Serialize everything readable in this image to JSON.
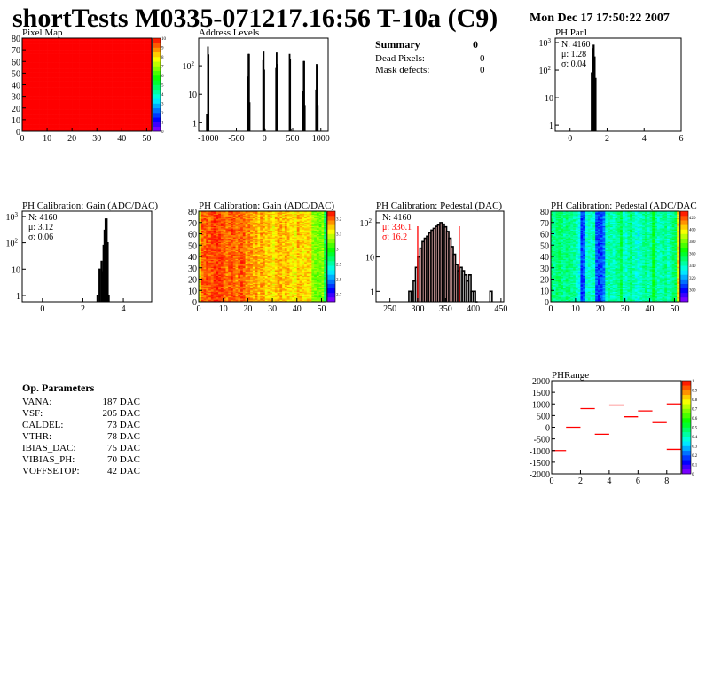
{
  "canvas": {
    "title": "shortTests M0335-071217.16:56 T-10a (C9)",
    "date": "Mon Dec 17 17:50:22 2007"
  },
  "summary": {
    "heading": "Summary",
    "total": "0",
    "rows": [
      {
        "label": "Dead Pixels:",
        "value": "0"
      },
      {
        "label": "Mask defects:",
        "value": "0"
      }
    ]
  },
  "op_parameters": {
    "heading": "Op. Parameters",
    "rows": [
      {
        "label": "VANA:",
        "value": "187 DAC"
      },
      {
        "label": "VSF:",
        "value": "205 DAC"
      },
      {
        "label": "CALDEL:",
        "value": "73 DAC"
      },
      {
        "label": "VTHR:",
        "value": "78 DAC"
      },
      {
        "label": "IBIAS_DAC:",
        "value": "75 DAC"
      },
      {
        "label": "VIBIAS_PH:",
        "value": "70 DAC"
      },
      {
        "label": "VOFFSETOP:",
        "value": "42 DAC"
      }
    ]
  },
  "colors": {
    "line": "#000000",
    "highlight": "#ff0000"
  },
  "chart_data": [
    {
      "id": "pixel_map",
      "type": "heatmap",
      "title": "Pixel Map",
      "xlim": [
        0,
        52
      ],
      "ylim": [
        0,
        80
      ],
      "zlim": [
        0,
        10
      ],
      "xticks": [
        0,
        10,
        20,
        30,
        40,
        50
      ],
      "yticks": [
        0,
        10,
        20,
        30,
        40,
        50,
        60,
        70,
        80
      ],
      "zticks": [
        0,
        1,
        2,
        3,
        4,
        5,
        6,
        7,
        8,
        9,
        10
      ],
      "uniform_value": 10
    },
    {
      "id": "address_levels",
      "type": "bar",
      "title": "Address Levels",
      "xlim": [
        -1170,
        1130
      ],
      "ylim": [
        0.5,
        930
      ],
      "log_y": true,
      "xticks": [
        -1000,
        -500,
        0,
        500,
        1000
      ],
      "yticks": [
        1,
        10,
        100
      ],
      "bins": [
        [
          -1030,
          2
        ],
        [
          -1020,
          0.5
        ],
        [
          -1010,
          450
        ],
        [
          -1000,
          240
        ],
        [
          -310,
          8
        ],
        [
          -300,
          40
        ],
        [
          -290,
          250
        ],
        [
          -280,
          250
        ],
        [
          -270,
          5
        ],
        [
          -30,
          150
        ],
        [
          -20,
          300
        ],
        [
          -10,
          70
        ],
        [
          0,
          0.6
        ],
        [
          200,
          80
        ],
        [
          210,
          280
        ],
        [
          220,
          110
        ],
        [
          440,
          250
        ],
        [
          450,
          170
        ],
        [
          460,
          0.6
        ],
        [
          680,
          13
        ],
        [
          690,
          140
        ],
        [
          700,
          140
        ],
        [
          710,
          4
        ],
        [
          910,
          14
        ],
        [
          920,
          110
        ],
        [
          930,
          100
        ],
        [
          940,
          4
        ]
      ],
      "bin_width": 10
    },
    {
      "id": "ph_par1",
      "type": "bar",
      "title": "PH Par1",
      "xlim": [
        -0.8,
        6
      ],
      "ylim": [
        0.6,
        1450
      ],
      "log_y": true,
      "xticks": [
        0,
        2,
        4,
        6
      ],
      "yticks": [
        1,
        10,
        100,
        1000
      ],
      "stats": {
        "N": "N: 4160",
        "mean": "μ: 1.28",
        "sigma": "σ: 0.04"
      },
      "bins": [
        [
          1.15,
          80
        ],
        [
          1.2,
          600
        ],
        [
          1.25,
          800
        ],
        [
          1.3,
          300
        ],
        [
          1.35,
          50
        ]
      ],
      "bin_width": 0.05
    },
    {
      "id": "gain_hist",
      "type": "bar",
      "title": "PH Calibration: Gain (ADC/DAC)",
      "xlim": [
        -1,
        5.4
      ],
      "ylim": [
        0.58,
        1580
      ],
      "log_y": true,
      "xticks": [
        0,
        2,
        4
      ],
      "yticks": [
        1,
        10,
        100,
        1000
      ],
      "stats": {
        "N": "N: 4160",
        "mean": "μ: 3.12",
        "sigma": "σ: 0.06"
      },
      "bins": [
        [
          2.7,
          1
        ],
        [
          2.8,
          10
        ],
        [
          2.9,
          20
        ],
        [
          2.95,
          8
        ],
        [
          3.0,
          80
        ],
        [
          3.05,
          300
        ],
        [
          3.1,
          800
        ],
        [
          3.15,
          800
        ],
        [
          3.2,
          100
        ],
        [
          3.25,
          1
        ]
      ],
      "bin_width": 0.05
    },
    {
      "id": "gain_map",
      "type": "heatmap",
      "title": "PH Calibration: Gain (ADC/DAC)",
      "xlim": [
        0,
        52
      ],
      "ylim": [
        0,
        80
      ],
      "zlim": [
        2.65,
        3.25
      ],
      "xticks": [
        0,
        10,
        20,
        30,
        40,
        50
      ],
      "yticks": [
        0,
        10,
        20,
        30,
        40,
        50,
        60,
        70,
        80
      ],
      "zticks": [
        2.7,
        2.8,
        2.9,
        3,
        3.1,
        3.2
      ],
      "column_means": [
        3.1,
        3.2,
        3.2,
        3.21,
        3.2,
        3.21,
        3.22,
        3.22,
        3.22,
        3.21,
        3.2,
        3.19,
        3.2,
        3.21,
        3.2,
        3.18,
        3.2,
        3.21,
        3.2,
        3.17,
        3.18,
        3.17,
        3.16,
        3.17,
        3.15,
        3.17,
        3.16,
        3.14,
        3.15,
        3.13,
        3.12,
        3.15,
        3.16,
        3.16,
        3.14,
        3.16,
        3.15,
        3.13,
        3.13,
        3.12,
        3.16,
        3.14,
        3.13,
        3.13,
        3.14,
        3.13,
        3.06,
        3.05,
        3.05,
        3.04,
        3.06,
        2.95
      ]
    },
    {
      "id": "pedestal_hist",
      "type": "bar",
      "title": "PH Calibration: Pedestal (DAC)",
      "xlim": [
        225,
        455
      ],
      "ylim": [
        0.5,
        215
      ],
      "log_y": true,
      "xticks": [
        250,
        300,
        350,
        400,
        450
      ],
      "yticks": [
        1,
        10,
        100
      ],
      "stats": {
        "N": "N: 4160",
        "mean": "μ: 336.1",
        "sigma": "σ: 16.2"
      },
      "cut_lines": [
        300,
        375
      ],
      "bins": [
        [
          284,
          1
        ],
        [
          288,
          1
        ],
        [
          292,
          2
        ],
        [
          296,
          5
        ],
        [
          300,
          10
        ],
        [
          304,
          18
        ],
        [
          308,
          28
        ],
        [
          312,
          35
        ],
        [
          316,
          40
        ],
        [
          320,
          50
        ],
        [
          324,
          60
        ],
        [
          328,
          68
        ],
        [
          332,
          78
        ],
        [
          336,
          85
        ],
        [
          340,
          100
        ],
        [
          344,
          90
        ],
        [
          348,
          75
        ],
        [
          352,
          55
        ],
        [
          356,
          35
        ],
        [
          360,
          20
        ],
        [
          364,
          12
        ],
        [
          368,
          6
        ],
        [
          372,
          4
        ],
        [
          376,
          5
        ],
        [
          380,
          4
        ],
        [
          384,
          3
        ],
        [
          388,
          2
        ],
        [
          392,
          3
        ],
        [
          396,
          1
        ],
        [
          400,
          1
        ],
        [
          404,
          0.5
        ],
        [
          430,
          1
        ]
      ],
      "bin_width": 4
    },
    {
      "id": "pedestal_map",
      "type": "heatmap",
      "title": "PH Calibration: Pedestal (ADC/DAC",
      "xlim": [
        0,
        52
      ],
      "ylim": [
        0,
        80
      ],
      "zlim": [
        280,
        430
      ],
      "xticks": [
        0,
        10,
        20,
        30,
        40,
        50
      ],
      "yticks": [
        0,
        10,
        20,
        30,
        40,
        50,
        60,
        70,
        80
      ],
      "zticks": [
        300,
        320,
        340,
        360,
        380,
        400,
        420
      ],
      "column_means": [
        350,
        345,
        350,
        352,
        348,
        345,
        350,
        348,
        346,
        345,
        340,
        335,
        305,
        310,
        335,
        340,
        338,
        342,
        310,
        305,
        308,
        315,
        340,
        345,
        342,
        340,
        345,
        348,
        355,
        340,
        338,
        345,
        350,
        342,
        338,
        335,
        340,
        345,
        348,
        342,
        345,
        360,
        345,
        340,
        342,
        345,
        348,
        340,
        345,
        350,
        352,
        400
      ]
    },
    {
      "id": "ph_range",
      "type": "scatter",
      "title": "PHRange",
      "xlim": [
        0,
        9
      ],
      "ylim": [
        -2000,
        2000
      ],
      "zlim": [
        0,
        1
      ],
      "xticks": [
        0,
        2,
        4,
        6,
        8
      ],
      "yticks": [
        -2000,
        -1500,
        -1000,
        -500,
        0,
        500,
        1000,
        1500,
        2000
      ],
      "zticks": [
        0,
        0.1,
        0.2,
        0.3,
        0.4,
        0.5,
        0.6,
        0.7,
        0.8,
        0.9,
        1
      ],
      "segments": [
        [
          0,
          1,
          -1000
        ],
        [
          1,
          2,
          0
        ],
        [
          2,
          3,
          800
        ],
        [
          3,
          4,
          -300
        ],
        [
          4,
          5,
          950
        ],
        [
          5,
          6,
          450
        ],
        [
          6,
          7,
          700
        ],
        [
          7,
          8,
          200
        ],
        [
          8,
          9,
          1000
        ],
        [
          8,
          9,
          -950
        ]
      ]
    }
  ]
}
